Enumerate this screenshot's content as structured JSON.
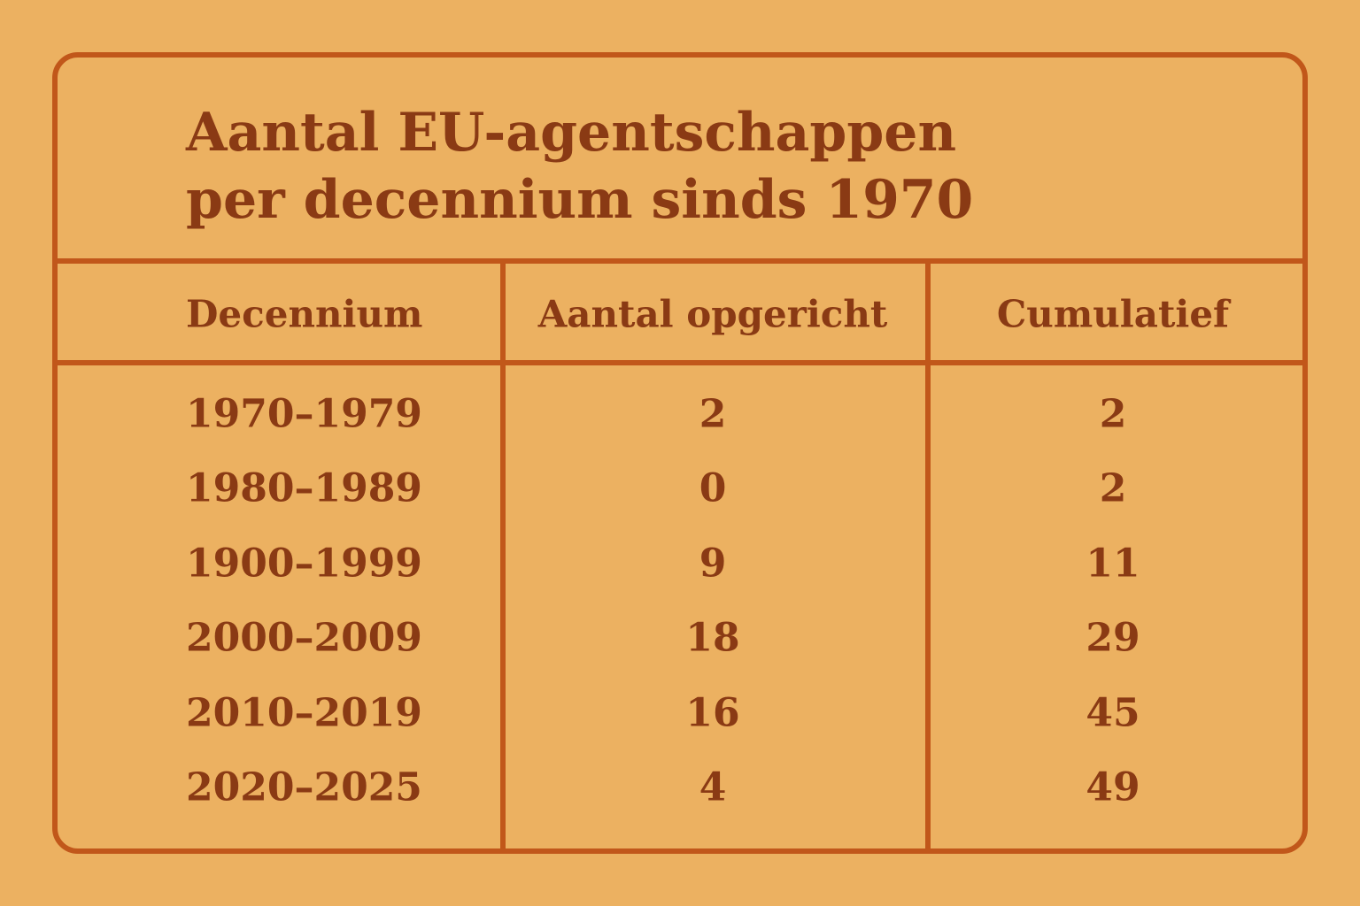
{
  "title": "Aantal EU-agentschappen per decennium sinds 1970",
  "table": {
    "headers": [
      "Decennium",
      "Aantal opgericht",
      "Cumulatief"
    ],
    "rows": [
      [
        "1970–1979",
        2,
        2
      ],
      [
        "1980–1989",
        0,
        2
      ],
      [
        "1900–1999",
        9,
        11
      ],
      [
        "2000–2009",
        18,
        29
      ],
      [
        "2010–2019",
        16,
        45
      ],
      [
        "2020–2025",
        4,
        49
      ]
    ]
  }
}
